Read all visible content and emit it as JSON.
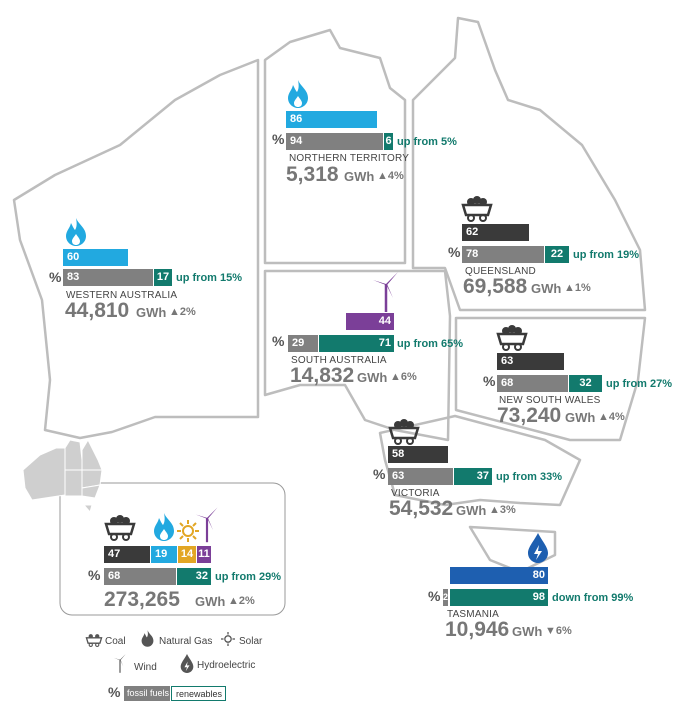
{
  "colors": {
    "coal": "#3a3a3a",
    "gas": "#22a9e0",
    "wind": "#7b3f98",
    "solar": "#e2a624",
    "hydro": "#1e5fb0",
    "fossil": "#808080",
    "renewables": "#127a6d"
  },
  "pct_symbol": "%",
  "unit": "GWh",
  "regions": {
    "nt": {
      "name": "NORTHERN TERRITORY",
      "fuel_value": "86",
      "fossil": "94",
      "renew": "6",
      "change": "up from 5%",
      "total": "5,318",
      "trend": "▲4%"
    },
    "wa": {
      "name": "WESTERN AUSTRALIA",
      "fuel_value": "60",
      "fossil": "83",
      "renew": "17",
      "change": "up from 15%",
      "total": "44,810",
      "trend": "▲2%"
    },
    "qld": {
      "name": "QUEENSLAND",
      "fuel_value": "62",
      "fossil": "78",
      "renew": "22",
      "change": "up from 19%",
      "total": "69,588",
      "trend": "▲1%"
    },
    "sa": {
      "name": "SOUTH AUSTRALIA",
      "fuel_value": "44",
      "fossil": "29",
      "renew": "71",
      "change": "up from 65%",
      "total": "14,832",
      "trend": "▲6%"
    },
    "nsw": {
      "name": "NEW SOUTH WALES",
      "fuel_value": "63",
      "fossil": "68",
      "renew": "32",
      "change": "up from 27%",
      "total": "73,240",
      "trend": "▲4%"
    },
    "vic": {
      "name": "VICTORIA",
      "fuel_value": "58",
      "fossil": "63",
      "renew": "37",
      "change": "up from  33%",
      "total": "54,532",
      "trend": "▲3%"
    },
    "tas": {
      "name": "TASMANIA",
      "fuel_value": "80",
      "fossil": "2",
      "renew": "98",
      "change": "down from 99%",
      "total": "10,946",
      "trend": "▼6%"
    }
  },
  "national": {
    "coal": "47",
    "gas": "19",
    "solar": "14",
    "wind": "11",
    "fossil": "68",
    "renew": "32",
    "change": "up from 29%",
    "total": "273,265",
    "trend": "▲2%"
  },
  "legend": {
    "coal": "Coal",
    "gas": "Natural Gas",
    "solar": "Solar",
    "wind": "Wind",
    "hydro": "Hydroelectric",
    "fossil_fuels": "fossil fuels",
    "renewables": "renewables"
  }
}
